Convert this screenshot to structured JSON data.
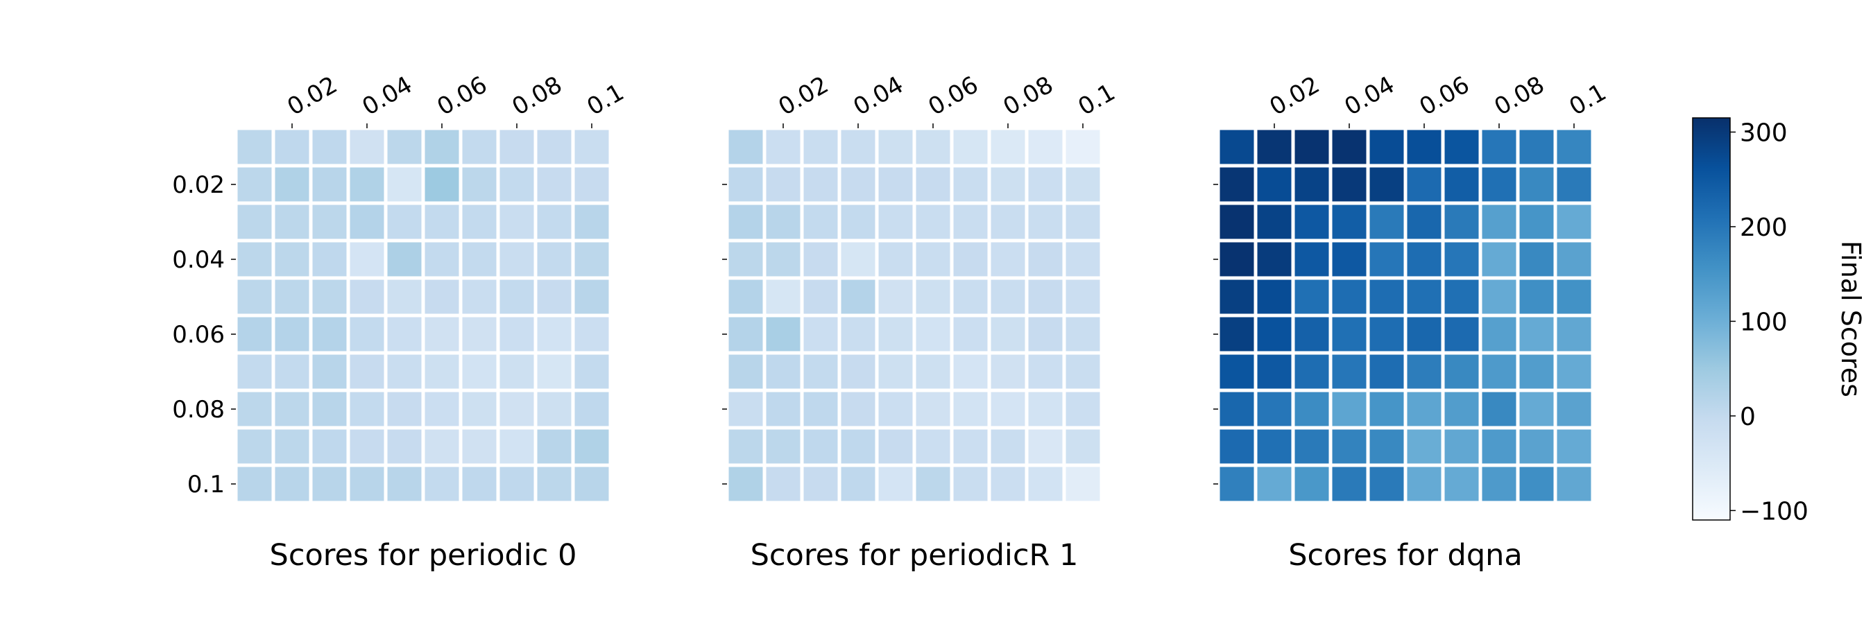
{
  "chart_data": {
    "type": "heatmap",
    "colormap": "Blues",
    "ticks": [
      "0.02",
      "0.04",
      "0.06",
      "0.08",
      "0.1"
    ],
    "panels": [
      {
        "title": "Scores for periodic 0",
        "values": [
          [
            10,
            5,
            5,
            -25,
            10,
            25,
            0,
            -5,
            -5,
            -10
          ],
          [
            10,
            25,
            15,
            25,
            -40,
            50,
            10,
            0,
            -5,
            -5
          ],
          [
            10,
            10,
            10,
            20,
            0,
            0,
            0,
            -10,
            0,
            15
          ],
          [
            10,
            10,
            5,
            -35,
            30,
            0,
            0,
            -10,
            0,
            10
          ],
          [
            10,
            10,
            10,
            -5,
            -20,
            -5,
            -10,
            0,
            -5,
            15
          ],
          [
            20,
            20,
            20,
            0,
            -15,
            -25,
            -25,
            -15,
            -30,
            -15
          ],
          [
            0,
            0,
            15,
            -5,
            -10,
            -20,
            -30,
            -20,
            -40,
            0
          ],
          [
            10,
            10,
            15,
            0,
            -5,
            -15,
            -20,
            -25,
            -20,
            5
          ],
          [
            10,
            10,
            5,
            -5,
            -5,
            -25,
            -25,
            -30,
            15,
            25
          ],
          [
            15,
            15,
            15,
            15,
            15,
            0,
            5,
            5,
            10,
            15
          ]
        ]
      },
      {
        "title": "Scores for periodicR 1",
        "values": [
          [
            20,
            -15,
            -10,
            -10,
            -20,
            -20,
            -40,
            -50,
            -55,
            -75
          ],
          [
            5,
            -5,
            -5,
            -5,
            -5,
            -5,
            -10,
            -20,
            -15,
            -20
          ],
          [
            20,
            15,
            0,
            0,
            -10,
            -10,
            -10,
            -10,
            -10,
            -10
          ],
          [
            10,
            10,
            -5,
            -40,
            -10,
            -10,
            -5,
            -15,
            -5,
            -15
          ],
          [
            20,
            -40,
            -5,
            20,
            -25,
            -20,
            -10,
            -10,
            -5,
            -15
          ],
          [
            20,
            35,
            -15,
            -10,
            -20,
            -30,
            -15,
            -20,
            -5,
            -10
          ],
          [
            15,
            5,
            0,
            -5,
            -20,
            -20,
            -35,
            -25,
            -15,
            -10
          ],
          [
            -10,
            5,
            5,
            -5,
            -15,
            -25,
            -30,
            -35,
            -30,
            -15
          ],
          [
            10,
            10,
            5,
            5,
            -5,
            -15,
            -15,
            -10,
            -45,
            -20
          ],
          [
            25,
            -5,
            -5,
            5,
            -35,
            10,
            -10,
            -15,
            -30,
            -65
          ]
        ]
      },
      {
        "title": "Scores for dqna",
        "values": [
          [
            275,
            305,
            310,
            310,
            270,
            265,
            255,
            200,
            195,
            175
          ],
          [
            305,
            270,
            285,
            300,
            290,
            220,
            240,
            210,
            170,
            195
          ],
          [
            310,
            285,
            250,
            240,
            195,
            225,
            195,
            130,
            150,
            110
          ],
          [
            310,
            295,
            250,
            250,
            200,
            215,
            200,
            110,
            170,
            125
          ],
          [
            290,
            270,
            210,
            215,
            215,
            210,
            210,
            110,
            160,
            155
          ],
          [
            290,
            260,
            235,
            210,
            215,
            225,
            220,
            130,
            110,
            115
          ],
          [
            255,
            250,
            215,
            200,
            215,
            190,
            170,
            140,
            135,
            110
          ],
          [
            225,
            200,
            165,
            120,
            150,
            120,
            135,
            170,
            110,
            125
          ],
          [
            220,
            210,
            195,
            180,
            170,
            105,
            115,
            140,
            125,
            110
          ],
          [
            185,
            110,
            145,
            195,
            195,
            110,
            110,
            140,
            160,
            115
          ]
        ]
      }
    ],
    "colorbar": {
      "label": "Final Scores",
      "min": -110,
      "max": 315,
      "ticks": [
        -100,
        0,
        100,
        200,
        300
      ],
      "tick_labels": [
        "−100",
        "0",
        "100",
        "200",
        "300"
      ]
    }
  }
}
